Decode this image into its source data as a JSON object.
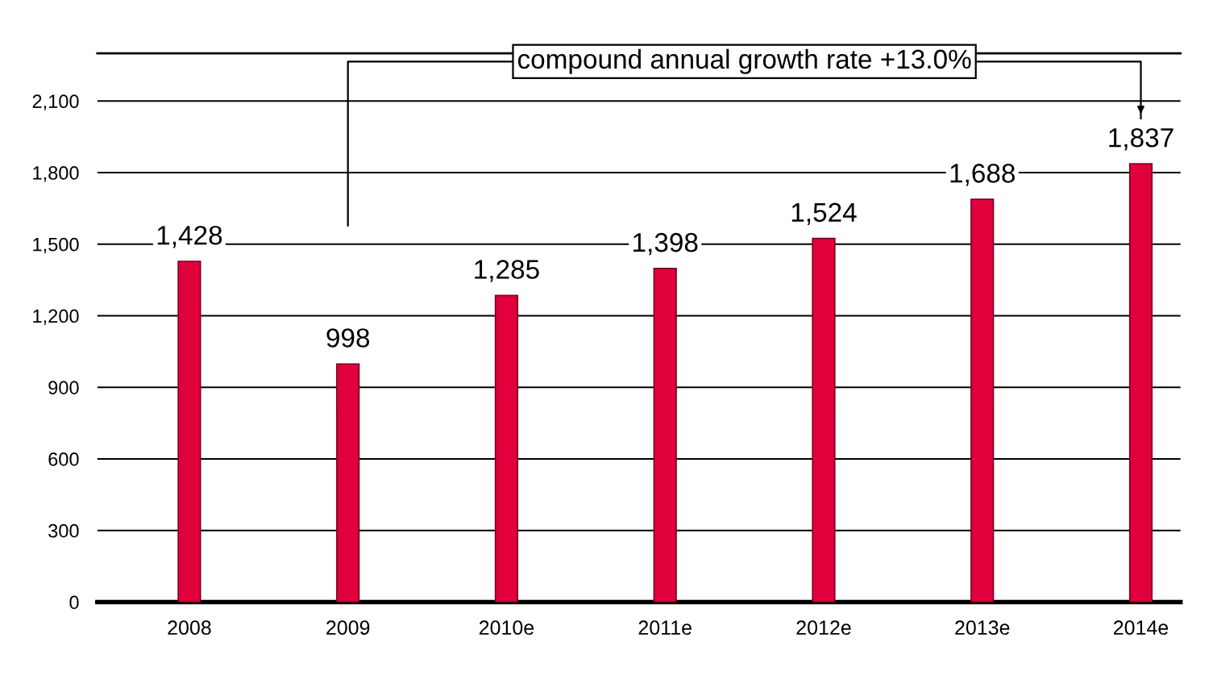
{
  "chart_data": {
    "type": "bar",
    "categories": [
      "2008",
      "2009",
      "2010e",
      "2011e",
      "2012e",
      "2013e",
      "2014e"
    ],
    "values": [
      1428,
      998,
      1285,
      1398,
      1524,
      1688,
      1837
    ],
    "color": "#e0003c",
    "ylim": [
      0,
      2300
    ],
    "yticks": [
      0,
      {
        "value": 300,
        "label": "300"
      },
      {
        "value": 600,
        "label": "600"
      },
      {
        "value": 900,
        "label": "900"
      },
      {
        "value": 1200,
        "label": "1,200"
      },
      {
        "value": 1500,
        "label": "1,500"
      },
      {
        "value": 1800,
        "label": "1,800"
      },
      {
        "value": 2100,
        "label": "2,100"
      }
    ],
    "grid": "y",
    "value_labels": [
      "1,428",
      "998",
      "1,285",
      "1,398",
      "1,524",
      "1,688",
      "1,837"
    ],
    "annotations": [
      "compound annual growth rate +13.0%"
    ]
  }
}
